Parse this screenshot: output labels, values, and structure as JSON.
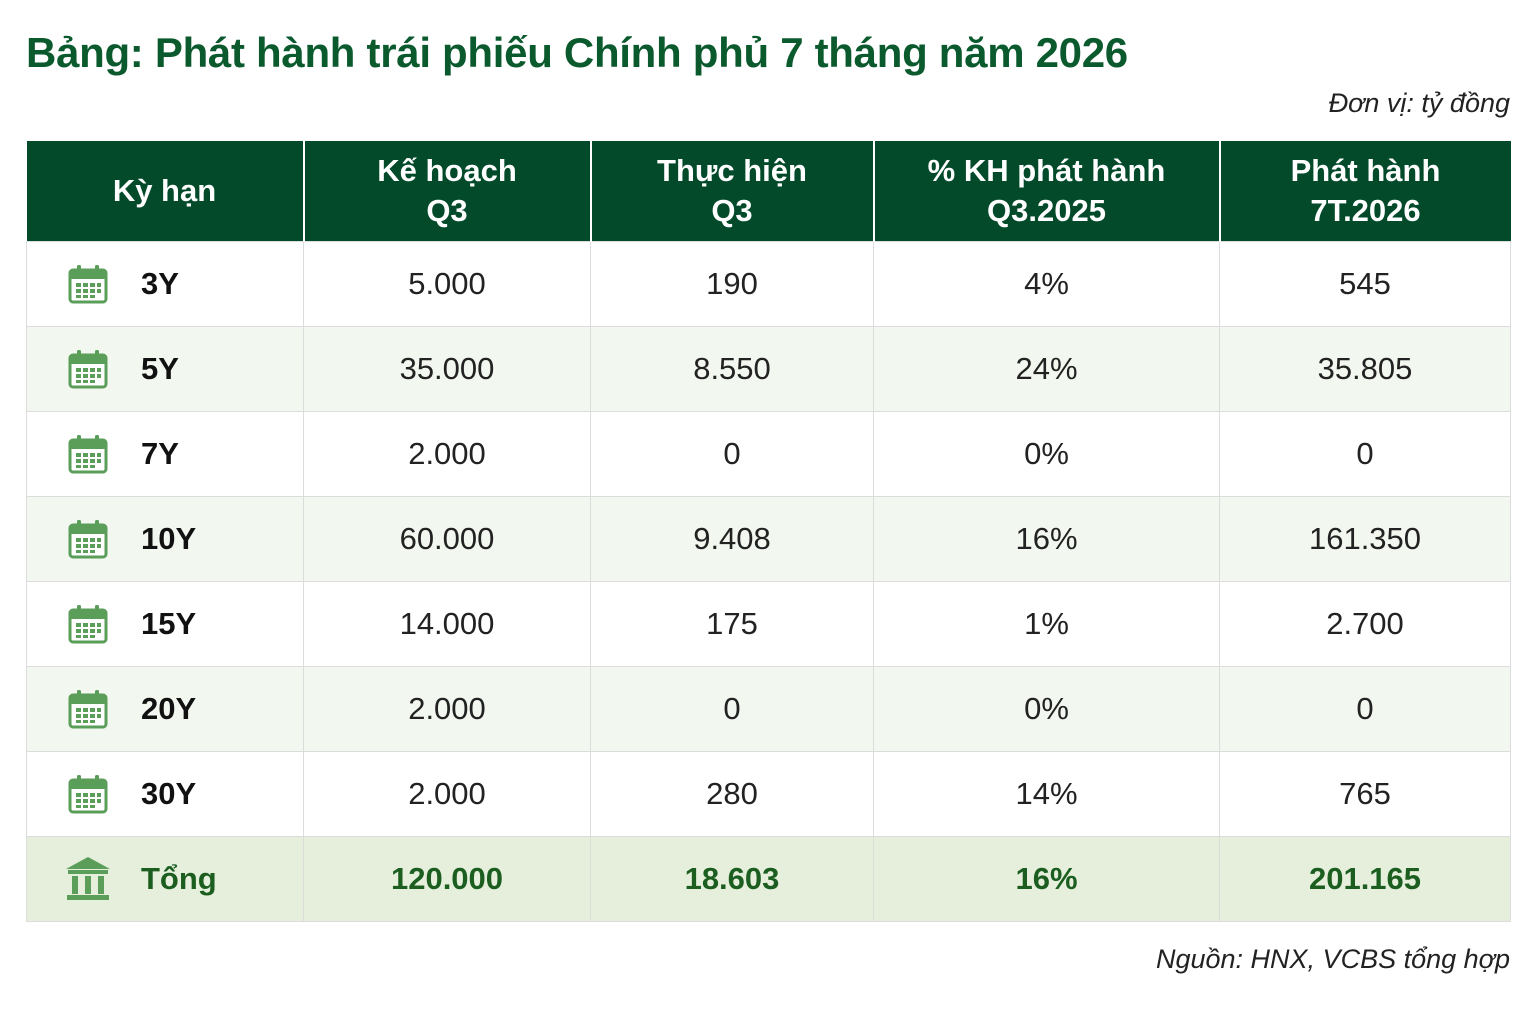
{
  "title": "Bảng: Phát hành trái phiếu Chính phủ 7 tháng năm 2026",
  "unit": "Đơn vị: tỷ đồng",
  "source": "Nguồn: HNX, VCBS tổng hợp",
  "colors": {
    "header_bg": "#024a2a",
    "title": "#0b5a2e",
    "icon": "#5a9e5a",
    "total_bg": "#e6efdc",
    "alt_row_bg": "#f2f7ef"
  },
  "columns": [
    {
      "line1": "Kỳ hạn",
      "line2": ""
    },
    {
      "line1": "Kế hoạch",
      "line2": "Q3"
    },
    {
      "line1": "Thực hiện",
      "line2": "Q3"
    },
    {
      "line1": "% KH phát hành",
      "line2": "Q3.2025"
    },
    {
      "line1": "Phát hành",
      "line2": "7T.2026"
    }
  ],
  "rows": [
    {
      "icon": "calendar-icon",
      "term": "3Y",
      "plan": "5.000",
      "actual": "190",
      "pct": "4%",
      "ytd": "545"
    },
    {
      "icon": "calendar-icon",
      "term": "5Y",
      "plan": "35.000",
      "actual": "8.550",
      "pct": "24%",
      "ytd": "35.805"
    },
    {
      "icon": "calendar-icon",
      "term": "7Y",
      "plan": "2.000",
      "actual": "0",
      "pct": "0%",
      "ytd": "0"
    },
    {
      "icon": "calendar-icon",
      "term": "10Y",
      "plan": "60.000",
      "actual": "9.408",
      "pct": "16%",
      "ytd": "161.350"
    },
    {
      "icon": "calendar-icon",
      "term": "15Y",
      "plan": "14.000",
      "actual": "175",
      "pct": "1%",
      "ytd": "2.700"
    },
    {
      "icon": "calendar-icon",
      "term": "20Y",
      "plan": "2.000",
      "actual": "0",
      "pct": "0%",
      "ytd": "0"
    },
    {
      "icon": "calendar-icon",
      "term": "30Y",
      "plan": "2.000",
      "actual": "280",
      "pct": "14%",
      "ytd": "765"
    }
  ],
  "total": {
    "icon": "bank-icon",
    "term": "Tổng",
    "plan": "120.000",
    "actual": "18.603",
    "pct": "16%",
    "ytd": "201.165"
  }
}
